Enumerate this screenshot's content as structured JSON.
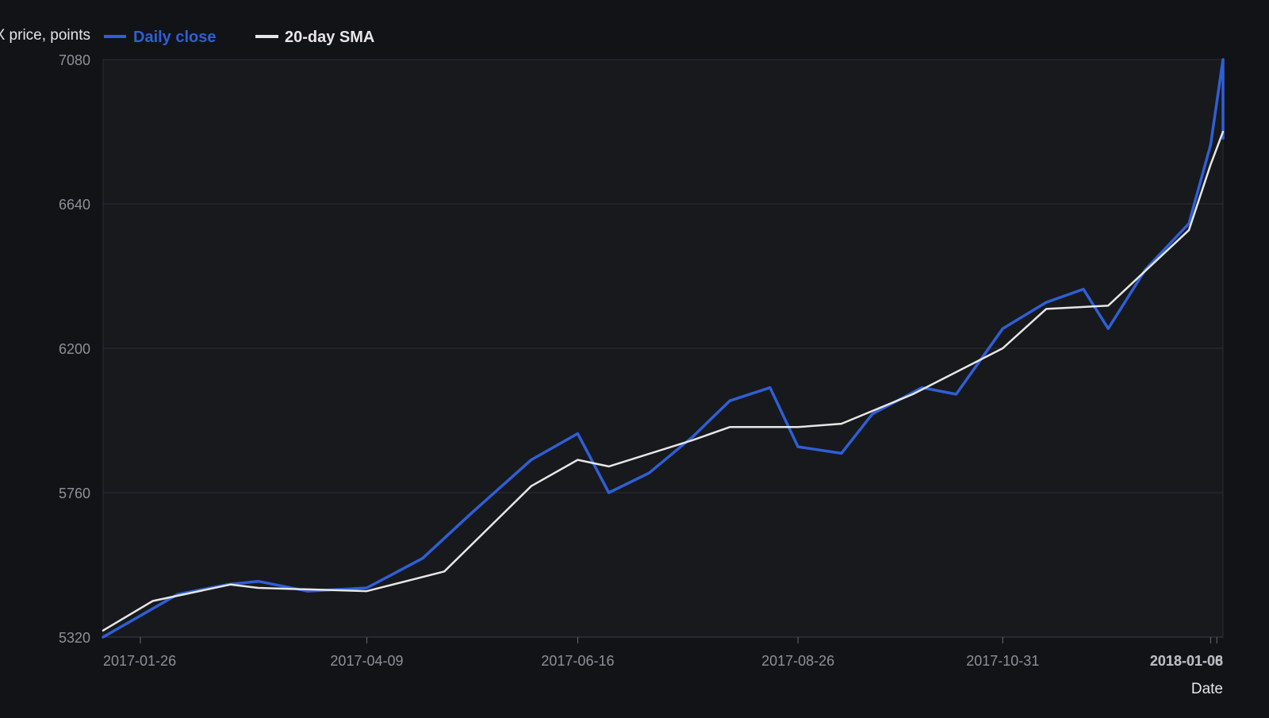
{
  "chart_data": {
    "type": "line",
    "ylabel": "SPX price, points",
    "xlabel": "Date",
    "ylim": [
      5320,
      7080
    ],
    "y_ticks": [
      "5320",
      "5760",
      "6200",
      "6640",
      "7080"
    ],
    "x_range": [
      "2017-01-14",
      "2018-01-10"
    ],
    "x_ticks": [
      "2017-01-26",
      "2017-04-09",
      "2017-06-16",
      "2017-08-26",
      "2017-10-31",
      "2018-01-06",
      "2018-01-08"
    ],
    "grid": true,
    "legend": "top-left",
    "series": [
      {
        "name": "Daily close",
        "color": "#2f5fd6",
        "points": [
          [
            "2017-01-14",
            5320
          ],
          [
            "2017-02-07",
            5450
          ],
          [
            "2017-02-23",
            5480
          ],
          [
            "2017-03-05",
            5490
          ],
          [
            "2017-03-21",
            5460
          ],
          [
            "2017-04-09",
            5470
          ],
          [
            "2017-04-27",
            5560
          ],
          [
            "2017-05-13",
            5700
          ],
          [
            "2017-06-01",
            5860
          ],
          [
            "2017-06-16",
            5940
          ],
          [
            "2017-06-26",
            5760
          ],
          [
            "2017-07-09",
            5820
          ],
          [
            "2017-07-23",
            5930
          ],
          [
            "2017-08-04",
            6040
          ],
          [
            "2017-08-17",
            6080
          ],
          [
            "2017-08-26",
            5900
          ],
          [
            "2017-09-09",
            5880
          ],
          [
            "2017-09-19",
            6000
          ],
          [
            "2017-10-05",
            6080
          ],
          [
            "2017-10-16",
            6060
          ],
          [
            "2017-10-31",
            6260
          ],
          [
            "2017-11-14",
            6340
          ],
          [
            "2017-11-26",
            6380
          ],
          [
            "2017-12-04",
            6260
          ],
          [
            "2017-12-16",
            6440
          ],
          [
            "2017-12-30",
            6580
          ],
          [
            "2018-01-06",
            6820
          ],
          [
            "2018-01-10",
            7080
          ],
          [
            "2018-01-10",
            6840
          ]
        ]
      },
      {
        "name": "20-day SMA",
        "color": "#e6e6e6",
        "points": [
          [
            "2017-01-14",
            5340
          ],
          [
            "2017-01-30",
            5430
          ],
          [
            "2017-02-24",
            5480
          ],
          [
            "2017-03-05",
            5470
          ],
          [
            "2017-04-09",
            5460
          ],
          [
            "2017-05-04",
            5520
          ],
          [
            "2017-06-01",
            5780
          ],
          [
            "2017-06-16",
            5860
          ],
          [
            "2017-06-26",
            5840
          ],
          [
            "2017-07-23",
            5920
          ],
          [
            "2017-08-04",
            5960
          ],
          [
            "2017-08-26",
            5960
          ],
          [
            "2017-09-09",
            5970
          ],
          [
            "2017-10-02",
            6060
          ],
          [
            "2017-10-31",
            6200
          ],
          [
            "2017-11-14",
            6320
          ],
          [
            "2017-12-04",
            6330
          ],
          [
            "2017-12-30",
            6560
          ],
          [
            "2018-01-06",
            6760
          ],
          [
            "2018-01-10",
            6860
          ]
        ]
      }
    ]
  }
}
